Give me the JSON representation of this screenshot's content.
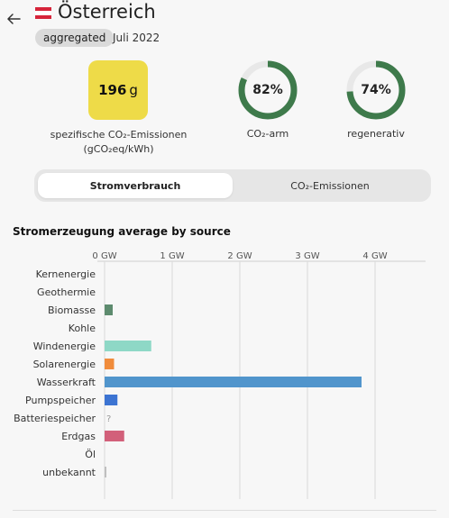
{
  "header": {
    "country": "Österreich",
    "badge": "aggregated",
    "date": "Juli 2022",
    "flag_colors": [
      "#d6243a",
      "#ffffff",
      "#d6243a"
    ]
  },
  "metrics": {
    "intensity": {
      "value": "196",
      "unit": "g",
      "label": "spezifische CO₂-Emissionen (gCO₂eq/kWh)",
      "color": "#eedb48"
    },
    "low_carbon": {
      "percent": 82,
      "value_text": "82%",
      "label": "CO₂-arm",
      "color": "#3e7a4b"
    },
    "renewable": {
      "percent": 74,
      "value_text": "74%",
      "label": "regenerativ",
      "color": "#3e7a4b"
    }
  },
  "toggle": {
    "active": "Stromverbrauch",
    "inactive": "CO₂-Emissionen"
  },
  "chart_title": "Stromerzeugung average by source",
  "chart_data": {
    "type": "bar",
    "orientation": "horizontal",
    "x_unit": "GW",
    "xlim": [
      0,
      4.5
    ],
    "xticks": [
      "0 GW",
      "1 GW",
      "2 GW",
      "3 GW",
      "4 GW"
    ],
    "xtick_values": [
      0,
      1,
      2,
      3,
      4
    ],
    "grid": true,
    "categories": [
      "Kernenergie",
      "Geothermie",
      "Biomasse",
      "Kohle",
      "Windenergie",
      "Solarenergie",
      "Wasserkraft",
      "Pumpspeicher",
      "Batteriespeicher",
      "Erdgas",
      "Öl",
      "unbekannt"
    ],
    "values": [
      0,
      0,
      0.12,
      0,
      0.69,
      0.14,
      3.8,
      0.19,
      null,
      0.29,
      0,
      0.02
    ],
    "colors": [
      "#c8c8c8",
      "#c8c8c8",
      "#5d8b6e",
      "#c8c8c8",
      "#8ed8c6",
      "#f08c3c",
      "#5195cc",
      "#3c74d2",
      "#c8c8c8",
      "#d2607a",
      "#c8c8c8",
      "#bfbfbf"
    ],
    "unknown_marker": "?"
  }
}
